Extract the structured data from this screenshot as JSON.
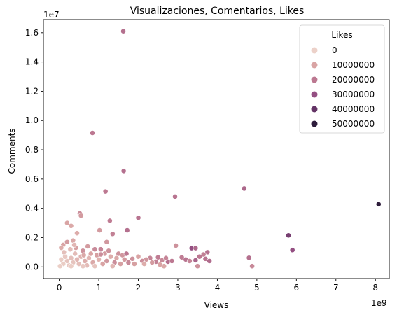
{
  "chart_data": {
    "type": "scatter",
    "title": "Visualizaciones, Comentarios, Likes",
    "xlabel": "Views",
    "ylabel": "Comments",
    "x_multiplier": "1e9",
    "y_multiplier": "1e7",
    "xlim": [
      -0.4,
      8.35
    ],
    "ylim": [
      -0.08,
      1.69
    ],
    "x_ticks": [
      0,
      1,
      2,
      3,
      4,
      5,
      6,
      7,
      8
    ],
    "y_ticks": [
      0.0,
      0.2,
      0.4,
      0.6,
      0.8,
      1.0,
      1.2,
      1.4,
      1.6
    ],
    "y_tick_labels": [
      "0.0",
      "0.2",
      "0.4",
      "0.6",
      "0.8",
      "1.0",
      "1.2",
      "1.4",
      "1.6"
    ],
    "x_tick_labels": [
      "0",
      "1",
      "2",
      "3",
      "4",
      "5",
      "6",
      "7",
      "8"
    ],
    "grid": false,
    "legend": {
      "title": "Likes",
      "placement": "top-right",
      "entries": [
        {
          "label": "0",
          "color": "#ecd1c9"
        },
        {
          "label": "10000000",
          "color": "#d9a4a4"
        },
        {
          "label": "20000000",
          "color": "#bc7891"
        },
        {
          "label": "30000000",
          "color": "#944f82"
        },
        {
          "label": "40000000",
          "color": "#643466"
        },
        {
          "label": "50000000",
          "color": "#2d1c3b"
        }
      ]
    },
    "points": [
      [
        1.62,
        1.61,
        22000000
      ],
      [
        0.84,
        0.915,
        20000000
      ],
      [
        1.63,
        0.655,
        22000000
      ],
      [
        1.17,
        0.515,
        20000000
      ],
      [
        4.68,
        0.535,
        24000000
      ],
      [
        2.93,
        0.48,
        21000000
      ],
      [
        8.08,
        0.428,
        50000000
      ],
      [
        2.0,
        0.335,
        21000000
      ],
      [
        1.28,
        0.315,
        19000000
      ],
      [
        1.72,
        0.25,
        22000000
      ],
      [
        5.8,
        0.215,
        36000000
      ],
      [
        5.9,
        0.115,
        30000000
      ],
      [
        3.35,
        0.128,
        30000000
      ],
      [
        3.45,
        0.128,
        24000000
      ],
      [
        4.8,
        0.062,
        22000000
      ],
      [
        4.88,
        0.005,
        16000000
      ],
      [
        0.2,
        0.3,
        10000000
      ],
      [
        0.3,
        0.28,
        9000000
      ],
      [
        0.52,
        0.365,
        15000000
      ],
      [
        0.55,
        0.35,
        12000000
      ],
      [
        0.45,
        0.23,
        8000000
      ],
      [
        0.35,
        0.18,
        9000000
      ],
      [
        0.1,
        0.15,
        10000000
      ],
      [
        0.05,
        0.13,
        8000000
      ],
      [
        0.2,
        0.17,
        12000000
      ],
      [
        0.42,
        0.13,
        11000000
      ],
      [
        0.6,
        0.11,
        14000000
      ],
      [
        1.02,
        0.25,
        12000000
      ],
      [
        1.35,
        0.225,
        18000000
      ],
      [
        1.2,
        0.17,
        13000000
      ],
      [
        0.9,
        0.12,
        16000000
      ],
      [
        1.05,
        0.12,
        17000000
      ],
      [
        1.5,
        0.09,
        14000000
      ],
      [
        2.95,
        0.145,
        14000000
      ],
      [
        3.75,
        0.1,
        22000000
      ],
      [
        3.65,
        0.085,
        18000000
      ],
      [
        3.55,
        0.07,
        20000000
      ],
      [
        3.7,
        0.055,
        21000000
      ],
      [
        3.8,
        0.04,
        23000000
      ],
      [
        3.45,
        0.045,
        25000000
      ],
      [
        3.1,
        0.065,
        19000000
      ],
      [
        3.2,
        0.05,
        21000000
      ],
      [
        3.3,
        0.04,
        17000000
      ],
      [
        3.5,
        0.005,
        14000000
      ],
      [
        2.75,
        0.035,
        22000000
      ],
      [
        2.85,
        0.04,
        20000000
      ],
      [
        2.6,
        0.045,
        16000000
      ],
      [
        2.65,
        0.005,
        9000000
      ],
      [
        2.45,
        0.035,
        18000000
      ],
      [
        2.3,
        0.06,
        17000000
      ],
      [
        2.2,
        0.05,
        13000000
      ],
      [
        2.1,
        0.04,
        15000000
      ],
      [
        2.35,
        0.03,
        12000000
      ],
      [
        2.0,
        0.07,
        10000000
      ],
      [
        1.85,
        0.055,
        14000000
      ],
      [
        1.75,
        0.03,
        16000000
      ],
      [
        1.65,
        0.05,
        12000000
      ],
      [
        1.55,
        0.02,
        11000000
      ],
      [
        1.45,
        0.06,
        9000000
      ],
      [
        1.4,
        0.03,
        15000000
      ],
      [
        1.3,
        0.07,
        8000000
      ],
      [
        1.2,
        0.04,
        13000000
      ],
      [
        1.1,
        0.02,
        10000000
      ],
      [
        1.0,
        0.05,
        7000000
      ],
      [
        0.95,
        0.08,
        11000000
      ],
      [
        0.85,
        0.03,
        9000000
      ],
      [
        0.75,
        0.06,
        6000000
      ],
      [
        0.7,
        0.01,
        5000000
      ],
      [
        0.65,
        0.04,
        8000000
      ],
      [
        0.55,
        0.07,
        7000000
      ],
      [
        0.5,
        0.02,
        4000000
      ],
      [
        0.45,
        0.05,
        6000000
      ],
      [
        0.4,
        0.09,
        5000000
      ],
      [
        0.35,
        0.03,
        3000000
      ],
      [
        0.3,
        0.06,
        4000000
      ],
      [
        0.25,
        0.01,
        2000000
      ],
      [
        0.2,
        0.04,
        3000000
      ],
      [
        0.15,
        0.07,
        2000000
      ],
      [
        0.1,
        0.02,
        1000000
      ],
      [
        0.05,
        0.05,
        1000000
      ],
      [
        0.02,
        0.005,
        500000
      ],
      [
        0.12,
        0.1,
        4000000
      ],
      [
        0.28,
        0.12,
        5000000
      ],
      [
        0.38,
        0.15,
        6000000
      ],
      [
        0.62,
        0.08,
        9000000
      ],
      [
        0.8,
        0.09,
        10000000
      ],
      [
        0.72,
        0.14,
        12000000
      ],
      [
        1.15,
        0.09,
        12000000
      ],
      [
        1.25,
        0.11,
        14000000
      ],
      [
        1.6,
        0.08,
        13000000
      ],
      [
        1.9,
        0.02,
        11000000
      ],
      [
        2.5,
        0.065,
        19000000
      ],
      [
        2.7,
        0.06,
        17000000
      ],
      [
        2.55,
        0.015,
        10000000
      ],
      [
        1.35,
        0.005,
        6000000
      ],
      [
        0.9,
        0.005,
        3000000
      ],
      [
        0.6,
        0.005,
        2000000
      ],
      [
        0.3,
        0.005,
        1000000
      ],
      [
        2.15,
        0.02,
        8000000
      ],
      [
        1.7,
        0.09,
        20000000
      ],
      [
        1.05,
        0.085,
        15000000
      ]
    ]
  }
}
